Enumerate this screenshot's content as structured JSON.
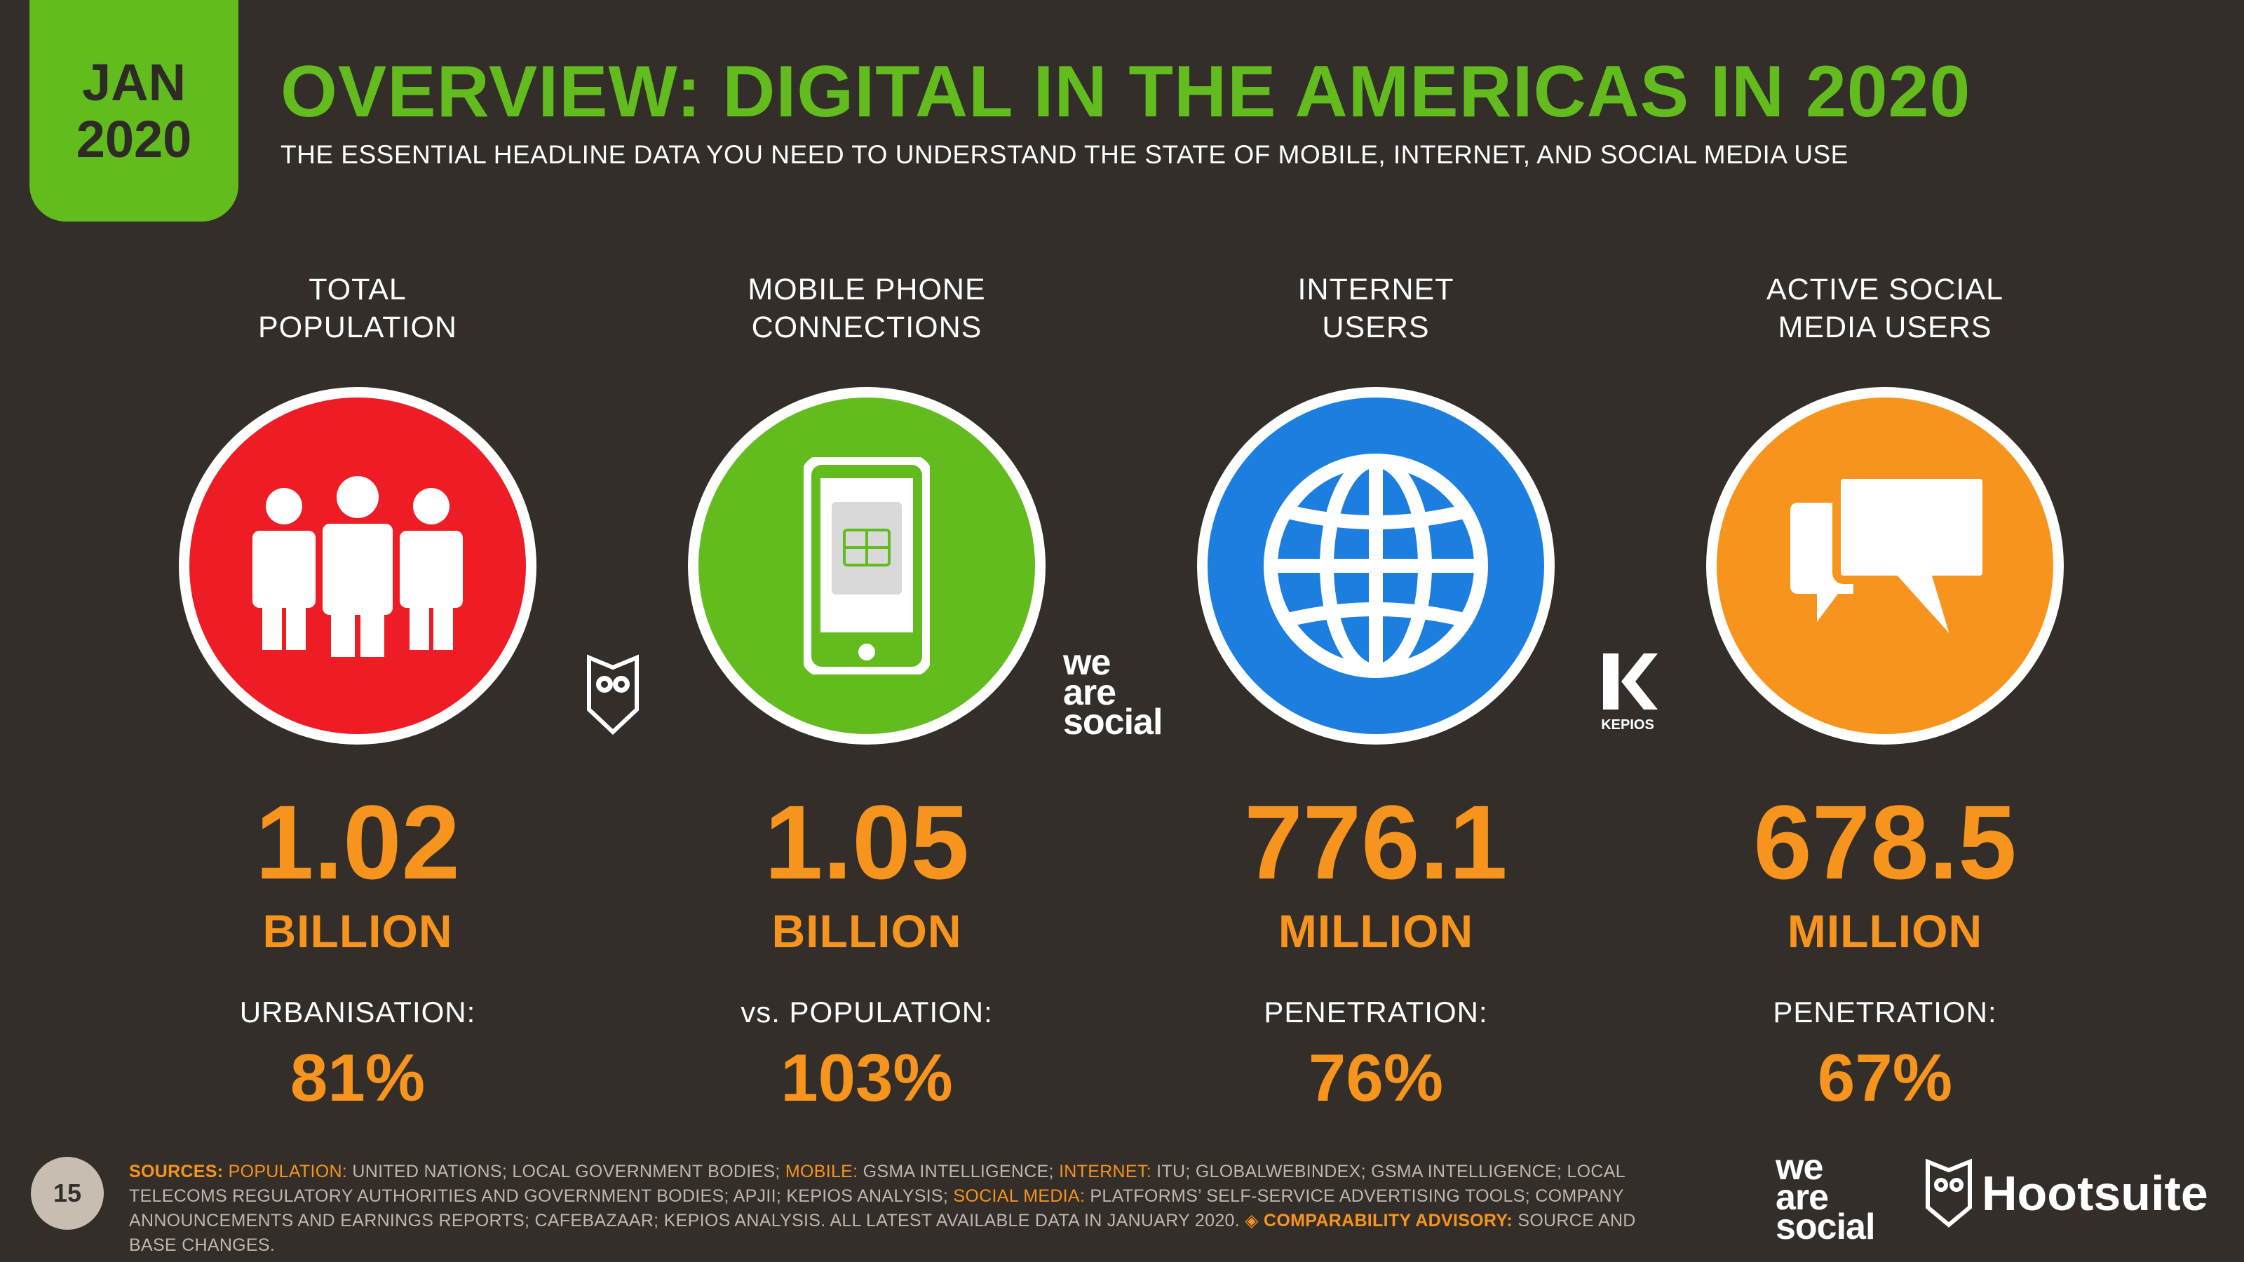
{
  "badge": {
    "month": "JAN",
    "year": "2020"
  },
  "header": {
    "title": "OVERVIEW: DIGITAL IN THE AMERICAS IN 2020",
    "subtitle": "THE ESSENTIAL HEADLINE DATA YOU NEED TO UNDERSTAND THE STATE OF MOBILE, INTERNET, AND SOCIAL MEDIA USE"
  },
  "stats": [
    {
      "label_line1": "TOTAL",
      "label_line2": "POPULATION",
      "icon": "people-icon",
      "color": "#ee1c24",
      "value": "1.02",
      "unit": "BILLION",
      "sub_label": "URBANISATION:",
      "sub_value": "81%"
    },
    {
      "label_line1": "MOBILE PHONE",
      "label_line2": "CONNECTIONS",
      "icon": "mobile-phone-icon",
      "color": "#62bc1e",
      "value": "1.05",
      "unit": "BILLION",
      "sub_label": "vs. POPULATION:",
      "sub_value": "103%"
    },
    {
      "label_line1": "INTERNET",
      "label_line2": "USERS",
      "icon": "globe-icon",
      "color": "#1c7fe0",
      "value": "776.1",
      "unit": "MILLION",
      "sub_label": "PENETRATION:",
      "sub_value": "76%"
    },
    {
      "label_line1": "ACTIVE SOCIAL",
      "label_line2": "MEDIA USERS",
      "icon": "chat-bubbles-icon",
      "color": "#f7941d",
      "value": "678.5",
      "unit": "MILLION",
      "sub_label": "PENETRATION:",
      "sub_value": "67%"
    }
  ],
  "logos": {
    "we_are_social": [
      "we",
      "are",
      "social"
    ],
    "kepios": "KEPIOS",
    "hootsuite": "Hootsuite"
  },
  "footer": {
    "page_number": "15",
    "sources": {
      "sources_label": "SOURCES:",
      "population_label": "POPULATION:",
      "population_text": " UNITED NATIONS; LOCAL GOVERNMENT BODIES; ",
      "mobile_label": "MOBILE:",
      "mobile_text": " GSMA INTELLIGENCE; ",
      "internet_label": "INTERNET:",
      "internet_text": " ITU; GLOBALWEBINDEX; GSMA INTELLIGENCE; LOCAL TELECOMS REGULATORY AUTHORITIES AND GOVERNMENT BODIES; APJII; KEPIOS ANALYSIS; ",
      "social_label": "SOCIAL MEDIA:",
      "social_text": " PLATFORMS’ SELF-SERVICE ADVERTISING TOOLS; COMPANY ANNOUNCEMENTS AND EARNINGS REPORTS; CAFEBAZAAR; KEPIOS ANALYSIS. ALL LATEST AVAILABLE DATA IN JANUARY 2020. ",
      "advisory_label": "COMPARABILITY ADVISORY:",
      "advisory_text": " SOURCE AND BASE CHANGES."
    }
  }
}
